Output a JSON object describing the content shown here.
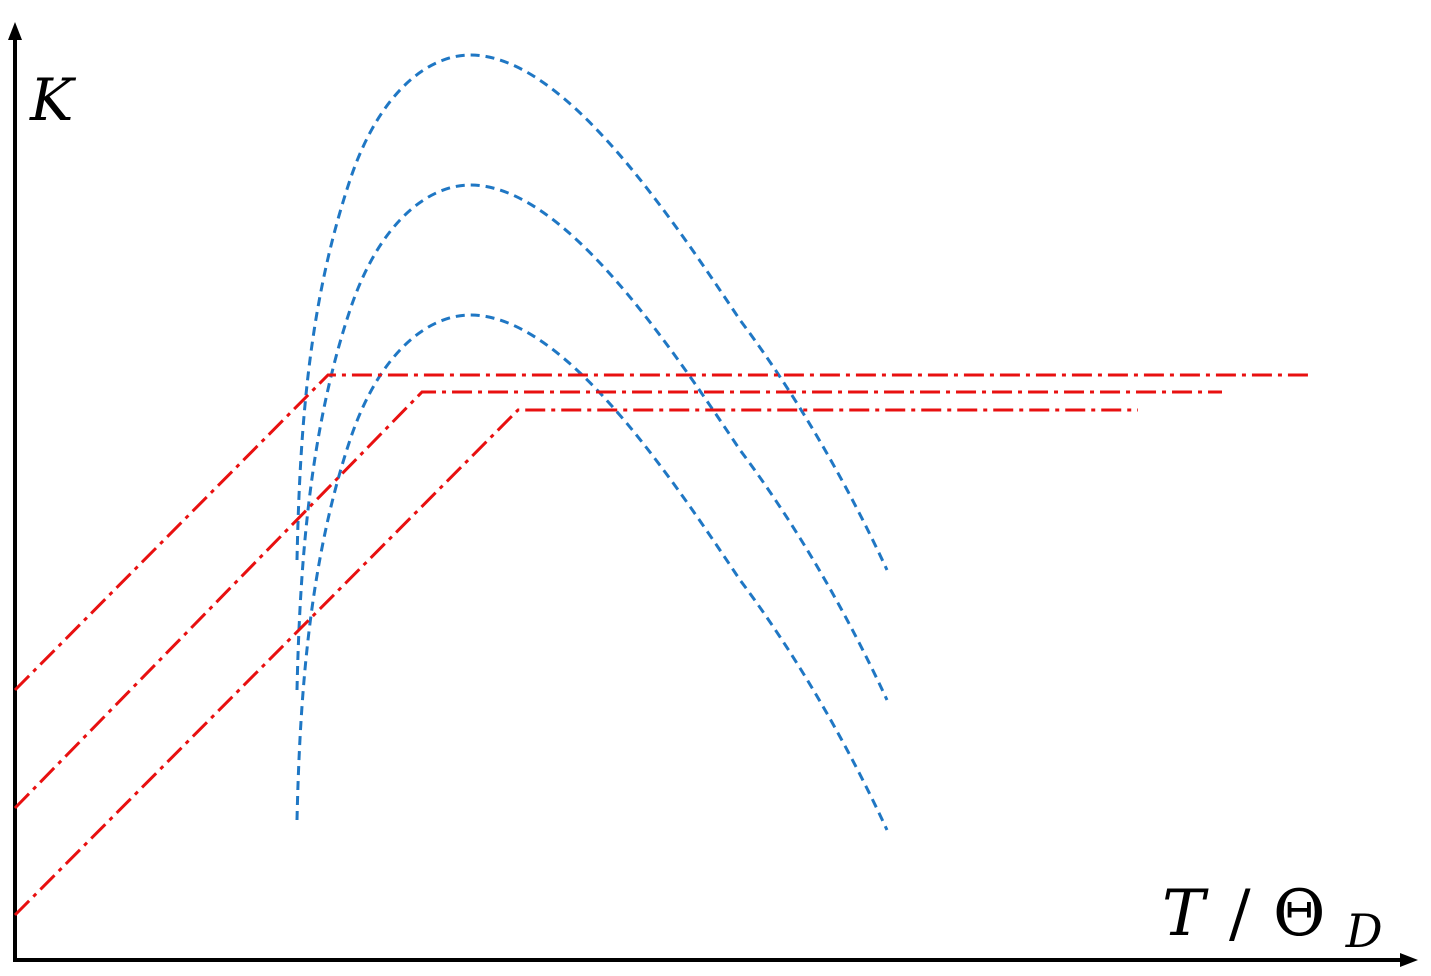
{
  "diagram": {
    "y_axis_label": "K",
    "x_axis_label_main": "T",
    "x_axis_label_slash": "/",
    "x_axis_label_theta": "Θ",
    "x_axis_label_sub": "D"
  },
  "colors": {
    "axis": "#000000",
    "dashed_curves": "#1f77c4",
    "dashdot_curves": "#e81010"
  },
  "line_styles": {
    "dashed_curves": "dashed",
    "dashdot_curves": "dash-dot"
  },
  "icons": {
    "x_axis_arrow": "arrow-right-icon",
    "y_axis_arrow": "arrow-up-icon"
  }
}
